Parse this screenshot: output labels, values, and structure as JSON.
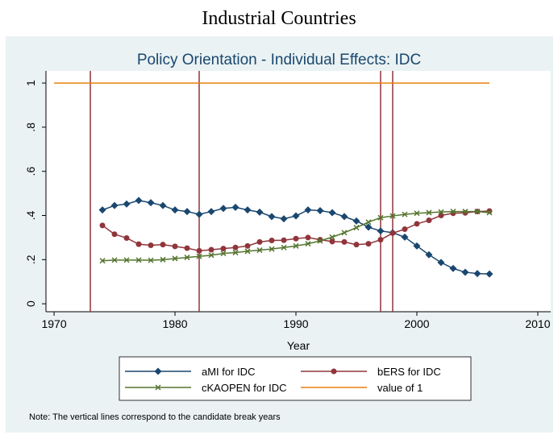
{
  "heading": "Industrial Countries",
  "chart_data": {
    "type": "line",
    "title": "Policy Orientation - Individual Effects: IDC",
    "x_label": "Year",
    "note": "Note: The vertical lines correspond to the candidate break years",
    "x": [
      1974,
      1975,
      1976,
      1977,
      1978,
      1979,
      1980,
      1981,
      1982,
      1983,
      1984,
      1985,
      1986,
      1987,
      1988,
      1989,
      1990,
      1991,
      1992,
      1993,
      1994,
      1995,
      1996,
      1997,
      1998,
      1999,
      2000,
      2001,
      2002,
      2003,
      2004,
      2005,
      2006
    ],
    "series": [
      {
        "name": "aMI for IDC",
        "color": "#1a476f",
        "marker": "diamond",
        "values": [
          0.425,
          0.445,
          0.452,
          0.468,
          0.458,
          0.445,
          0.425,
          0.418,
          0.405,
          0.418,
          0.432,
          0.437,
          0.425,
          0.415,
          0.395,
          0.385,
          0.398,
          0.425,
          0.422,
          0.413,
          0.395,
          0.375,
          0.347,
          0.33,
          0.322,
          0.302,
          0.262,
          0.222,
          0.187,
          0.16,
          0.143,
          0.137,
          0.135
        ]
      },
      {
        "name": "bERS for IDC",
        "color": "#90353b",
        "marker": "circle",
        "values": [
          0.355,
          0.315,
          0.298,
          0.27,
          0.265,
          0.268,
          0.26,
          0.252,
          0.24,
          0.245,
          0.25,
          0.255,
          0.262,
          0.28,
          0.287,
          0.288,
          0.295,
          0.3,
          0.29,
          0.282,
          0.28,
          0.268,
          0.272,
          0.29,
          0.32,
          0.338,
          0.362,
          0.378,
          0.4,
          0.41,
          0.412,
          0.418,
          0.42
        ]
      },
      {
        "name": "cKAOPEN for IDC",
        "color": "#55752f",
        "marker": "x",
        "values": [
          0.195,
          0.198,
          0.198,
          0.198,
          0.197,
          0.2,
          0.205,
          0.21,
          0.215,
          0.22,
          0.228,
          0.232,
          0.238,
          0.243,
          0.248,
          0.255,
          0.262,
          0.272,
          0.285,
          0.302,
          0.322,
          0.345,
          0.37,
          0.39,
          0.398,
          0.405,
          0.41,
          0.413,
          0.416,
          0.418,
          0.418,
          0.418,
          0.413
        ]
      }
    ],
    "reference_line": {
      "name": "value of 1",
      "color": "#e8800f",
      "value": 1,
      "x": [
        1970,
        2006
      ]
    },
    "break_years": [
      1973,
      1982,
      1997,
      1998
    ],
    "break_color": "#90353b",
    "xlim": [
      1969.33,
      2011.07
    ],
    "ylim": [
      -0.036,
      1.055
    ],
    "xticks": [
      1970,
      1980,
      1990,
      2000,
      2010
    ],
    "yticks": [
      0,
      {
        "value": 0.2,
        "label": ".2"
      },
      {
        "value": 0.4,
        "label": ".4"
      },
      {
        "value": 0.6,
        "label": ".6"
      },
      {
        "value": 0.8,
        "label": ".8"
      },
      1
    ]
  }
}
